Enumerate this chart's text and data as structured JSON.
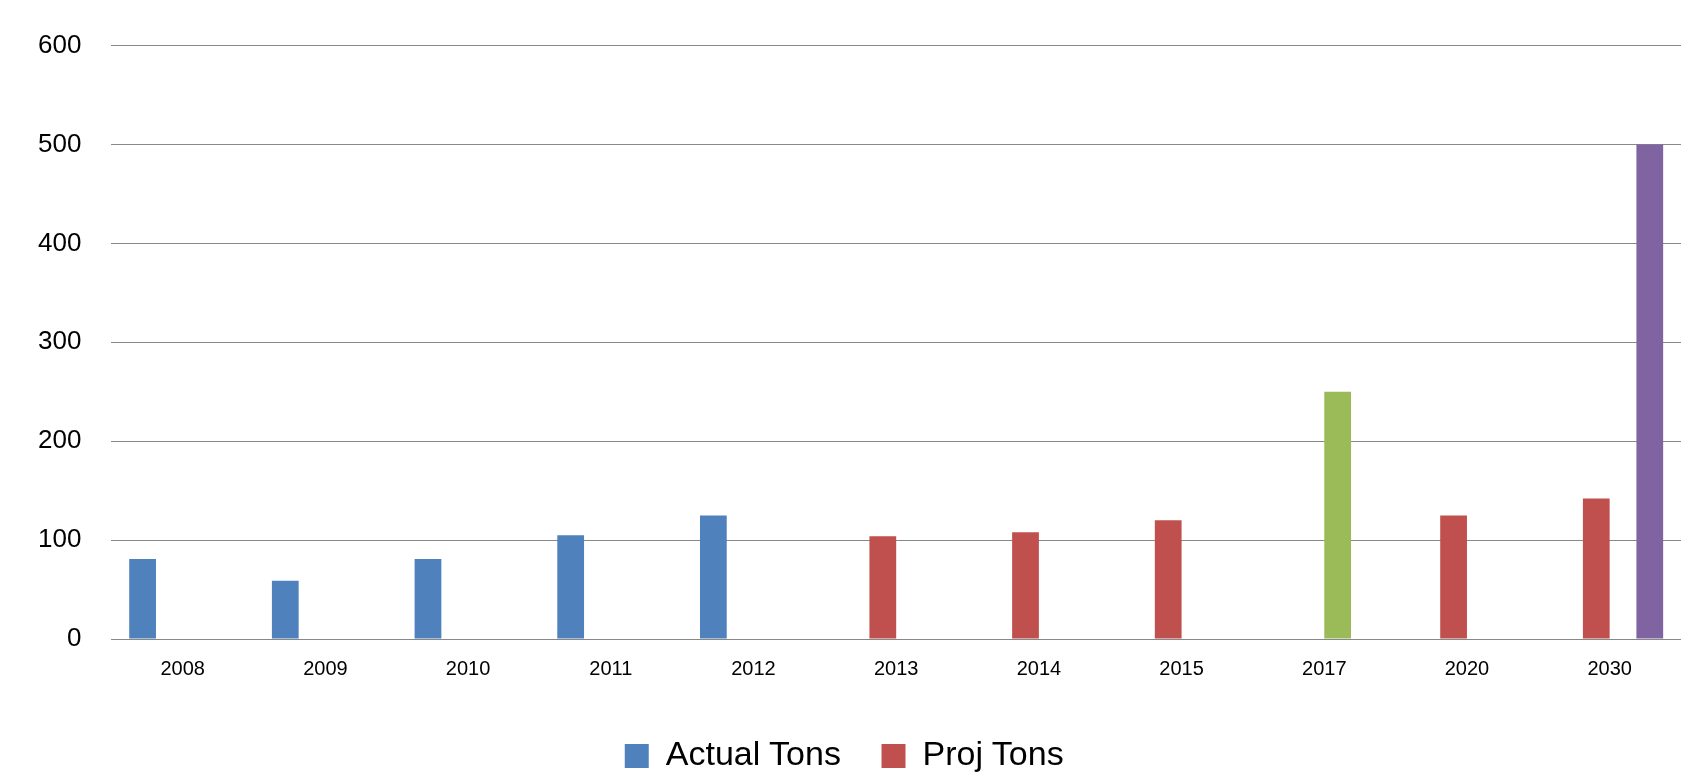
{
  "chart_data": {
    "type": "bar",
    "categories": [
      "2008",
      "2009",
      "2010",
      "2011",
      "2012",
      "2013",
      "2014",
      "2015",
      "2017",
      "2020",
      "2030"
    ],
    "series": [
      {
        "name": "Actual Tons",
        "color": "#4f81bd",
        "values": [
          81,
          59,
          81,
          105,
          125,
          null,
          null,
          null,
          null,
          null,
          null
        ]
      },
      {
        "name": "Proj Tons",
        "color": "#c0504d",
        "values": [
          null,
          null,
          null,
          null,
          null,
          104,
          108,
          120,
          null,
          125,
          142
        ]
      },
      {
        "color": "#9bbb59",
        "values": [
          null,
          null,
          null,
          null,
          null,
          null,
          null,
          null,
          250,
          null,
          null
        ]
      },
      {
        "color": "#8064a2",
        "values": [
          null,
          null,
          null,
          null,
          null,
          null,
          null,
          null,
          null,
          null,
          500
        ]
      }
    ],
    "ylim": [
      0,
      600
    ],
    "yticks": [
      0,
      100,
      200,
      300,
      400,
      500,
      600
    ],
    "grid": "y",
    "legend": "bottom"
  }
}
